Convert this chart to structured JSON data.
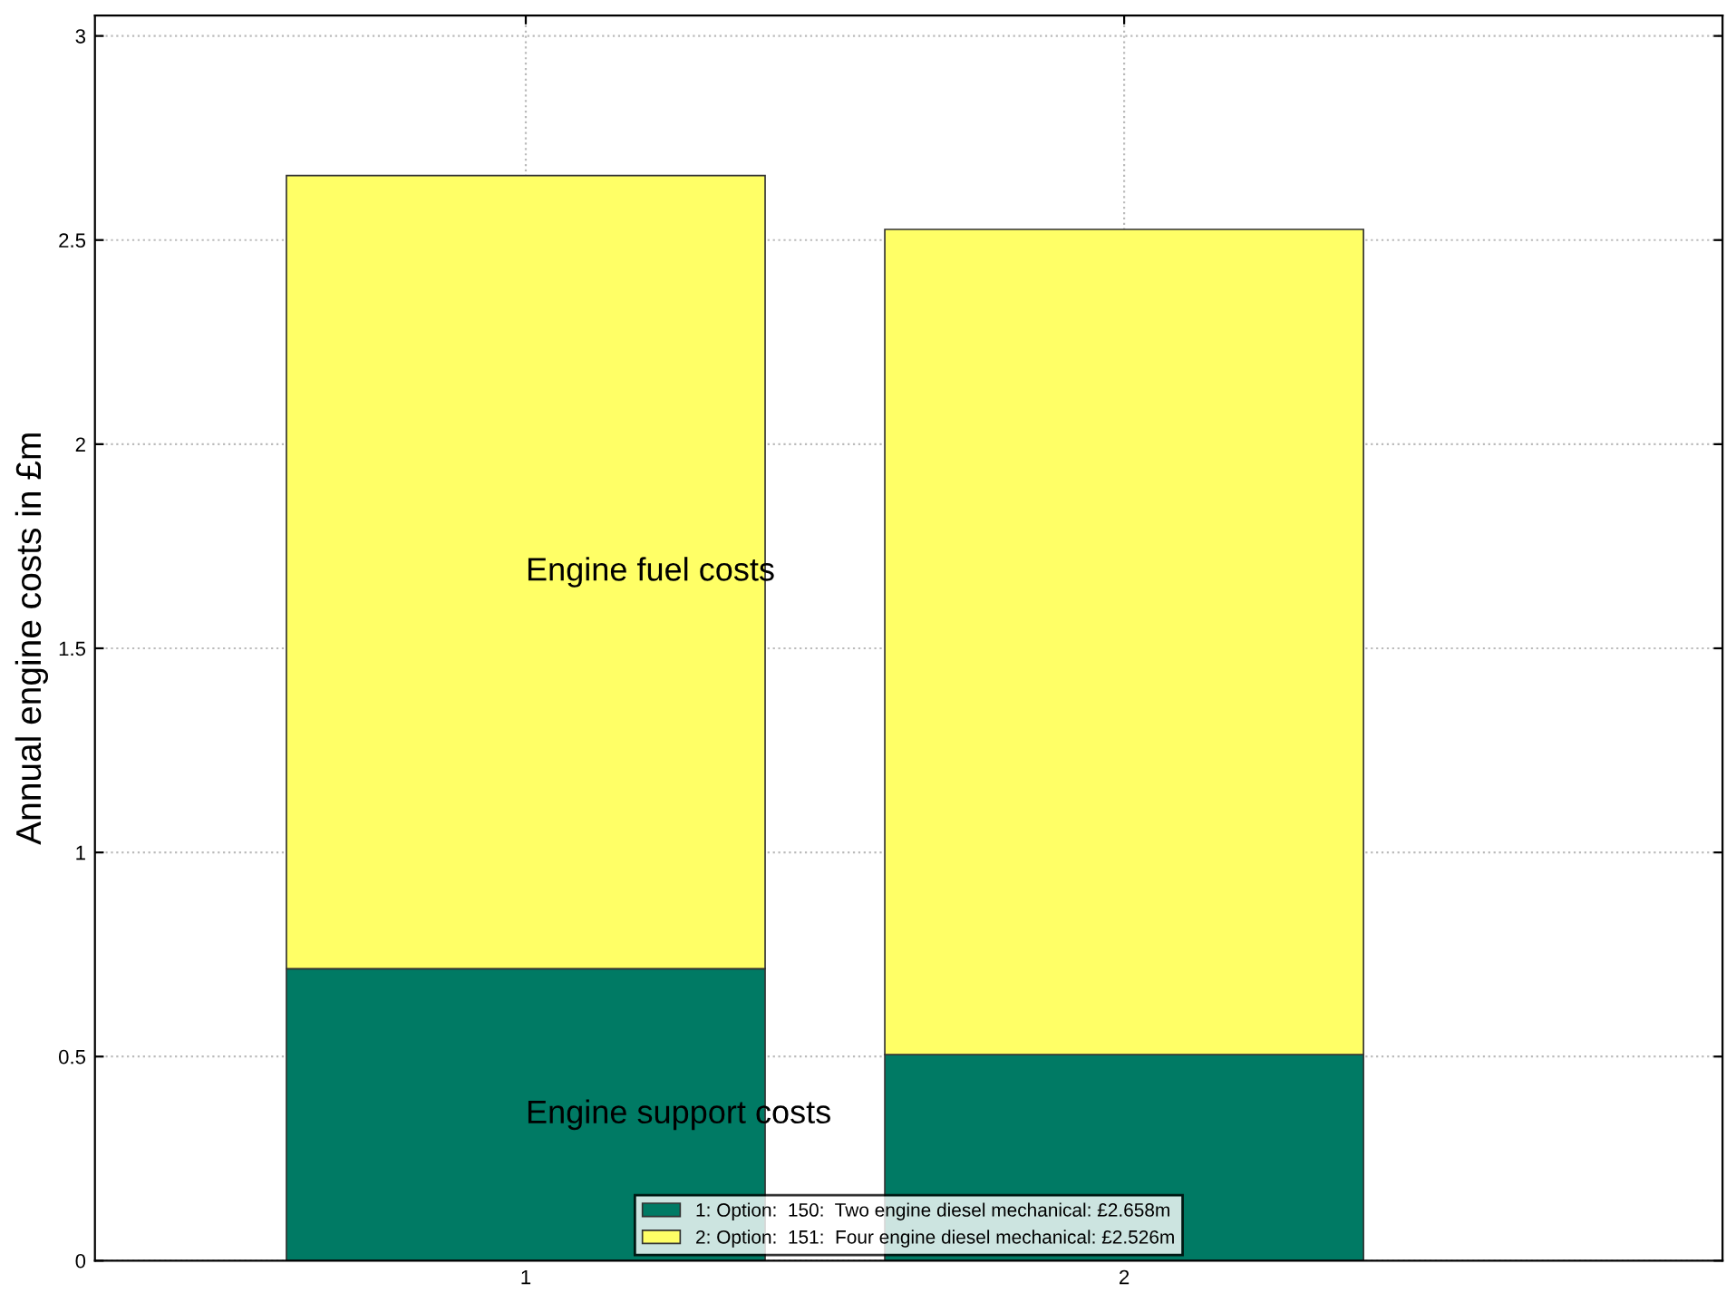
{
  "chart_data": {
    "type": "bar",
    "stacked": true,
    "ylabel": "Annual engine costs in £m",
    "x": [
      1,
      2
    ],
    "xlim": [
      0.28,
      3
    ],
    "xticks": [
      1,
      2
    ],
    "ylim": [
      0,
      3.05
    ],
    "yticks": [
      0,
      0.5,
      1,
      1.5,
      2,
      2.5,
      3
    ],
    "grid": true,
    "legend": "bottom",
    "series": [
      {
        "name": "1: Option:  150:  Two engine diesel mechanical: £2.658m",
        "color": "#007a64",
        "values": [
          0.715,
          0.505
        ]
      },
      {
        "name": "2: Option:  151:  Four engine diesel mechanical: £2.526m",
        "color": "#ffff66",
        "values": [
          1.943,
          2.021
        ]
      }
    ],
    "annotations": [
      "Engine fuel costs",
      "Engine support costs"
    ]
  }
}
